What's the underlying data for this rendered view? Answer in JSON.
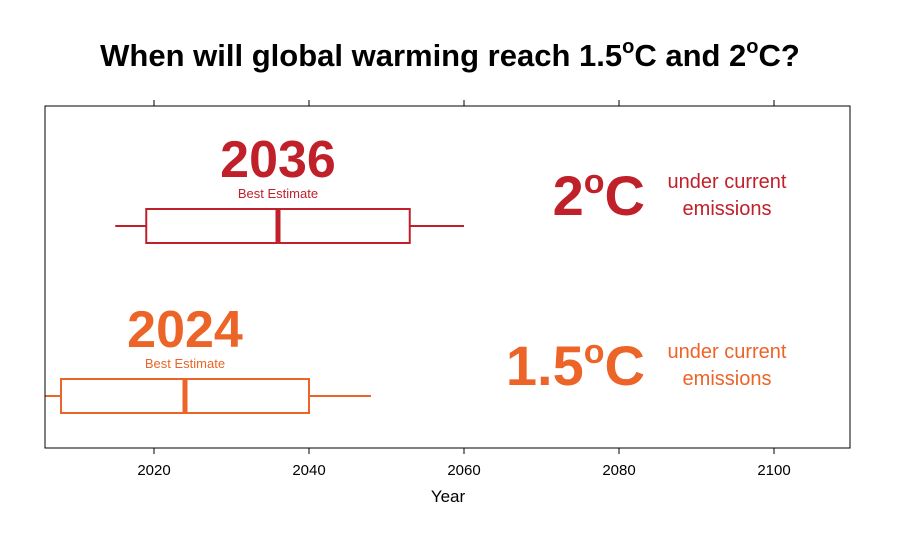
{
  "title": {
    "main": "When will global warming reach 1.5",
    "sup1": "o",
    "mid": "C and 2",
    "sup2": "o",
    "end": "C?"
  },
  "chart_data": {
    "type": "boxplot",
    "xlabel": "Year",
    "xlim": [
      2006,
      2110
    ],
    "xticks": [
      2020,
      2040,
      2060,
      2080,
      2100
    ],
    "grid": false,
    "series": [
      {
        "name": "2°C",
        "color": "#c0202a",
        "whisker_low": 2015,
        "q1": 2019,
        "median": 2036,
        "q3": 2053,
        "whisker_high": 2060,
        "estimate_label": "2036",
        "estimate_caption": "Best Estimate",
        "temp_label": "2",
        "temp_sup": "o",
        "temp_unit": "C",
        "note_line1": "under current",
        "note_line2": "emissions"
      },
      {
        "name": "1.5°C",
        "color": "#ec6428",
        "whisker_low": 2006,
        "q1": 2008,
        "median": 2024,
        "q3": 2040,
        "whisker_high": 2048,
        "estimate_label": "2024",
        "estimate_caption": "Best Estimate",
        "temp_label": "1.5",
        "temp_sup": "o",
        "temp_unit": "C",
        "note_line1": "under current",
        "note_line2": "emissions"
      }
    ]
  }
}
